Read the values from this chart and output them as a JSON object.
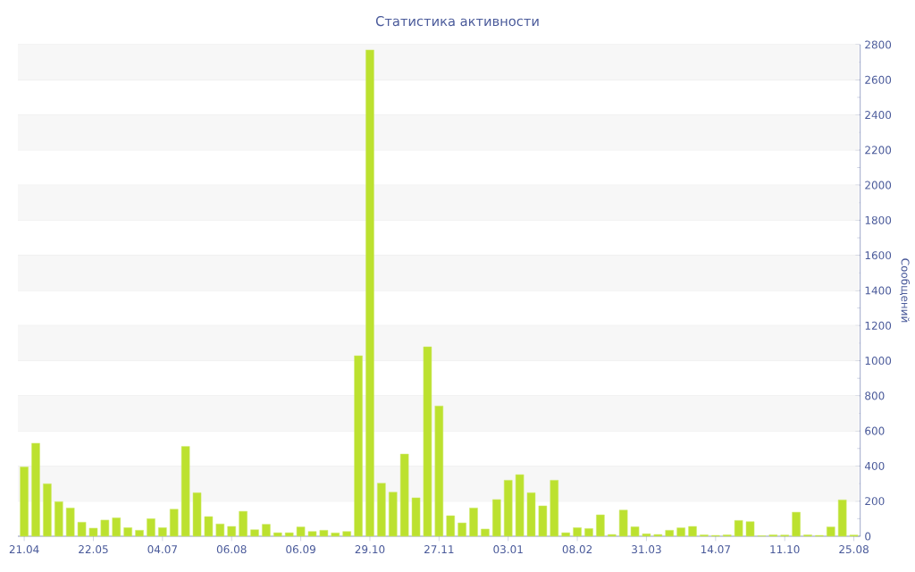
{
  "chart_data": {
    "type": "bar",
    "title": "Статистика активности",
    "ylabel": "Сообщений",
    "categories": [
      "21.04",
      null,
      null,
      null,
      null,
      null,
      "22.05",
      null,
      null,
      null,
      null,
      null,
      "04.07",
      null,
      null,
      null,
      null,
      null,
      "06.08",
      null,
      null,
      null,
      null,
      null,
      "06.09",
      null,
      null,
      null,
      null,
      null,
      "29.10",
      null,
      null,
      null,
      null,
      null,
      "27.11",
      null,
      null,
      null,
      null,
      null,
      "03.01",
      null,
      null,
      null,
      null,
      null,
      "08.02",
      null,
      null,
      null,
      null,
      null,
      "31.03",
      null,
      null,
      null,
      null,
      null,
      "14.07",
      null,
      null,
      null,
      null,
      null,
      "11.10",
      null,
      null,
      null,
      null,
      null,
      "25.08"
    ],
    "values": [
      395,
      530,
      299,
      197,
      161,
      80,
      46,
      92,
      105,
      49,
      34,
      100,
      49,
      154,
      512,
      248,
      112,
      70,
      56,
      142,
      37,
      68,
      20,
      20,
      53,
      27,
      34,
      19,
      27,
      1028,
      2770,
      302,
      251,
      468,
      219,
      1079,
      742,
      117,
      76,
      161,
      41,
      209,
      319,
      351,
      248,
      173,
      319,
      20,
      49,
      44,
      122,
      10,
      149,
      54,
      14,
      10,
      34,
      48,
      56,
      8,
      5,
      8,
      90,
      83,
      3,
      8,
      7,
      137,
      8,
      5,
      53,
      207,
      7
    ],
    "color": "#bce12f",
    "ylim": [
      0,
      2800
    ],
    "yticks": [
      0,
      200,
      400,
      600,
      800,
      1000,
      1200,
      1400,
      1600,
      1800,
      2000,
      2200,
      2400,
      2600,
      2800
    ],
    "grid": "y"
  }
}
